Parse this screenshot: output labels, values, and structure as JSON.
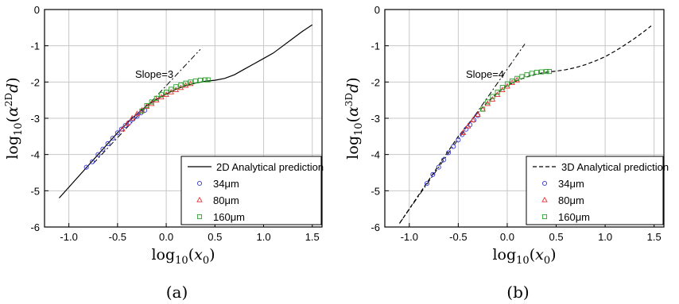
{
  "chart_data": [
    {
      "type": "scatter",
      "panel_label": "(a)",
      "xlabel": "log10(x0)",
      "ylabel": "log10(α2D d)",
      "xlim": [
        -1.25,
        1.6
      ],
      "ylim": [
        -6,
        0
      ],
      "x_ticks": [
        "-1.0",
        "-0.5",
        "0.0",
        "0.5",
        "1.0",
        "1.5"
      ],
      "y_ticks": [
        "0",
        "-1",
        "-2",
        "-3",
        "-4",
        "-5",
        "-6"
      ],
      "grid": true,
      "legend_position": "bottom-right",
      "annotation": "Slope=3",
      "slope_line": {
        "x": [
          -0.75,
          0.35
        ],
        "y": [
          -4.25,
          -1.1
        ],
        "style": "dash-dot"
      },
      "series": [
        {
          "name": "2D Analytical prediction",
          "kind": "line",
          "style": "solid",
          "color": "#000000",
          "x": [
            -1.1,
            -0.9,
            -0.7,
            -0.5,
            -0.35,
            -0.2,
            -0.1,
            0.0,
            0.1,
            0.2,
            0.3,
            0.4,
            0.5,
            0.6,
            0.7,
            0.8,
            0.9,
            1.0,
            1.1,
            1.2,
            1.3,
            1.4,
            1.5
          ],
          "y": [
            -5.2,
            -4.6,
            -4.0,
            -3.4,
            -3.0,
            -2.65,
            -2.48,
            -2.33,
            -2.2,
            -2.1,
            -2.03,
            -1.98,
            -1.95,
            -1.9,
            -1.8,
            -1.65,
            -1.5,
            -1.35,
            -1.2,
            -1.0,
            -0.8,
            -0.6,
            -0.42
          ]
        },
        {
          "name": "34μm",
          "kind": "markers",
          "marker": "circle",
          "color": "#3a3ad8",
          "x": [
            -0.82,
            -0.76,
            -0.7,
            -0.65,
            -0.6,
            -0.55,
            -0.5,
            -0.46,
            -0.42,
            -0.38,
            -0.34,
            -0.3,
            -0.26,
            -0.22
          ],
          "y": [
            -4.35,
            -4.2,
            -4.0,
            -3.85,
            -3.7,
            -3.55,
            -3.4,
            -3.3,
            -3.2,
            -3.12,
            -3.02,
            -2.95,
            -2.85,
            -2.78
          ]
        },
        {
          "name": "80μm",
          "kind": "markers",
          "marker": "triangle",
          "color": "#e03030",
          "x": [
            -0.45,
            -0.4,
            -0.35,
            -0.3,
            -0.25,
            -0.2,
            -0.15,
            -0.1,
            -0.05,
            0.0,
            0.05,
            0.1,
            0.15,
            0.2,
            0.25
          ],
          "y": [
            -3.3,
            -3.15,
            -3.0,
            -2.88,
            -2.78,
            -2.68,
            -2.6,
            -2.5,
            -2.42,
            -2.35,
            -2.28,
            -2.22,
            -2.16,
            -2.1,
            -2.05
          ]
        },
        {
          "name": "160μm",
          "kind": "markers",
          "marker": "square",
          "color": "#2aa02a",
          "x": [
            -0.25,
            -0.2,
            -0.15,
            -0.1,
            -0.05,
            0.0,
            0.05,
            0.1,
            0.15,
            0.2,
            0.25,
            0.3,
            0.35,
            0.4,
            0.43
          ],
          "y": [
            -2.8,
            -2.65,
            -2.55,
            -2.45,
            -2.35,
            -2.28,
            -2.2,
            -2.13,
            -2.08,
            -2.03,
            -2.0,
            -1.97,
            -1.95,
            -1.94,
            -1.94
          ]
        }
      ]
    },
    {
      "type": "scatter",
      "panel_label": "(b)",
      "xlabel": "log10(x0)",
      "ylabel": "log10(α3D d)",
      "xlim": [
        -1.25,
        1.6
      ],
      "ylim": [
        -6,
        0
      ],
      "x_ticks": [
        "-1.0",
        "-0.5",
        "0.0",
        "0.5",
        "1.0",
        "1.5"
      ],
      "y_ticks": [
        "0",
        "-1",
        "-2",
        "-3",
        "-4",
        "-5",
        "-6"
      ],
      "grid": true,
      "legend_position": "bottom-right",
      "annotation": "Slope=4",
      "slope_line": {
        "x": [
          -1.1,
          0.18
        ],
        "y": [
          -5.9,
          -0.95
        ],
        "style": "dash-dot"
      },
      "series": [
        {
          "name": "3D Analytical prediction",
          "kind": "line",
          "style": "dashed",
          "color": "#000000",
          "x": [
            -1.1,
            -0.9,
            -0.7,
            -0.5,
            -0.35,
            -0.2,
            -0.1,
            0.0,
            0.1,
            0.2,
            0.3,
            0.4,
            0.5,
            0.6,
            0.7,
            0.8,
            0.9,
            1.0,
            1.1,
            1.2,
            1.3,
            1.4,
            1.47
          ],
          "y": [
            -5.9,
            -5.1,
            -4.3,
            -3.5,
            -3.0,
            -2.55,
            -2.3,
            -2.1,
            -1.96,
            -1.86,
            -1.78,
            -1.73,
            -1.7,
            -1.66,
            -1.6,
            -1.52,
            -1.42,
            -1.3,
            -1.15,
            -0.98,
            -0.8,
            -0.6,
            -0.45
          ]
        },
        {
          "name": "34μm",
          "kind": "markers",
          "marker": "circle",
          "color": "#3a3ad8",
          "x": [
            -0.82,
            -0.76,
            -0.7,
            -0.65,
            -0.6,
            -0.55,
            -0.5,
            -0.46,
            -0.42,
            -0.38,
            -0.34,
            -0.3
          ],
          "y": [
            -4.8,
            -4.55,
            -4.35,
            -4.15,
            -3.95,
            -3.78,
            -3.6,
            -3.45,
            -3.3,
            -3.18,
            -3.05,
            -2.92
          ]
        },
        {
          "name": "80μm",
          "kind": "markers",
          "marker": "triangle",
          "color": "#e03030",
          "x": [
            -0.45,
            -0.4,
            -0.35,
            -0.3,
            -0.25,
            -0.2,
            -0.15,
            -0.1,
            -0.05,
            0.0,
            0.05,
            0.1
          ],
          "y": [
            -3.4,
            -3.22,
            -3.05,
            -2.9,
            -2.75,
            -2.6,
            -2.48,
            -2.35,
            -2.22,
            -2.12,
            -2.02,
            -1.95
          ]
        },
        {
          "name": "160μm",
          "kind": "markers",
          "marker": "square",
          "color": "#2aa02a",
          "x": [
            -0.25,
            -0.2,
            -0.15,
            -0.1,
            -0.05,
            0.0,
            0.05,
            0.1,
            0.15,
            0.2,
            0.25,
            0.3,
            0.35,
            0.4,
            0.43
          ],
          "y": [
            -2.75,
            -2.55,
            -2.4,
            -2.28,
            -2.15,
            -2.05,
            -1.97,
            -1.9,
            -1.85,
            -1.8,
            -1.76,
            -1.73,
            -1.72,
            -1.71,
            -1.71
          ]
        }
      ]
    }
  ]
}
